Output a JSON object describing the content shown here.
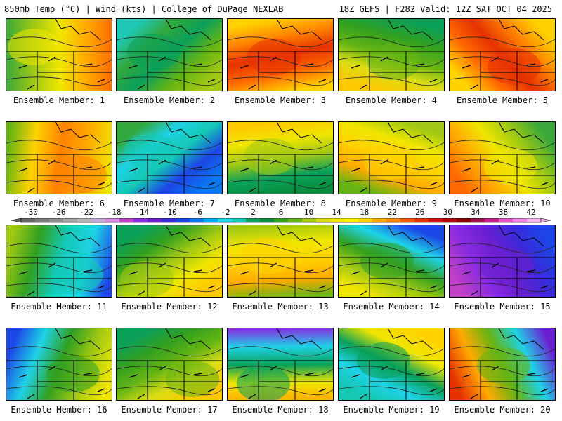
{
  "header": {
    "left": "850mb Temp (°C) | Wind (kts) | College of DuPage NEXLAB",
    "right": "18Z GEFS | F282 Valid: 12Z SAT OCT 04 2025"
  },
  "panels": [
    {
      "label": "Ensemble Member: 1",
      "style": "warm-mid"
    },
    {
      "label": "Ensemble Member: 2",
      "style": "cool-green"
    },
    {
      "label": "Ensemble Member: 3",
      "style": "hot"
    },
    {
      "label": "Ensemble Member: 4",
      "style": "green"
    },
    {
      "label": "Ensemble Member: 5",
      "style": "hot"
    },
    {
      "label": "Ensemble Member: 6",
      "style": "warm"
    },
    {
      "label": "Ensemble Member: 7",
      "style": "cyan"
    },
    {
      "label": "Ensemble Member: 8",
      "style": "yellow-green"
    },
    {
      "label": "Ensemble Member: 9",
      "style": "yellow"
    },
    {
      "label": "Ensemble Member: 10",
      "style": "warm-mid"
    },
    {
      "label": "Ensemble Member: 11",
      "style": "green-blue"
    },
    {
      "label": "Ensemble Member: 12",
      "style": "green-yellow"
    },
    {
      "label": "Ensemble Member: 13",
      "style": "yellow"
    },
    {
      "label": "Ensemble Member: 14",
      "style": "blue-yellow"
    },
    {
      "label": "Ensemble Member: 15",
      "style": "purple"
    },
    {
      "label": "Ensemble Member: 16",
      "style": "blue-yellow"
    },
    {
      "label": "Ensemble Member: 17",
      "style": "green"
    },
    {
      "label": "Ensemble Member: 18",
      "style": "purple-orange"
    },
    {
      "label": "Ensemble Member: 19",
      "style": "yellow-cyan"
    },
    {
      "label": "Ensemble Member: 20",
      "style": "purple-red"
    }
  ],
  "colorbar": {
    "labels": [
      "-30",
      "-26",
      "-22",
      "-18",
      "-14",
      "-10",
      "-6",
      "-2",
      "2",
      "6",
      "10",
      "14",
      "18",
      "22",
      "26",
      "30",
      "34",
      "38",
      "42"
    ],
    "colors": [
      "#666666",
      "#7a7a7a",
      "#8c8c8c",
      "#9f9f9f",
      "#b3b3b3",
      "#c8a8d8",
      "#d487e0",
      "#c040c8",
      "#8a2be2",
      "#6a1fd0",
      "#3a2ad8",
      "#1c46e6",
      "#0a78f0",
      "#00a8f8",
      "#1ed2e6",
      "#14c8b4",
      "#0aa05a",
      "#088c3c",
      "#32a020",
      "#64b414",
      "#a0c814",
      "#dcdc14",
      "#f0e600",
      "#fff000",
      "#ffd200",
      "#ffaa00",
      "#ff8200",
      "#f05a00",
      "#e63200",
      "#d21414",
      "#b40a0a",
      "#8c0000",
      "#a01450",
      "#c81e8c",
      "#e650c8",
      "#f082e6",
      "#f8b4f0"
    ]
  }
}
